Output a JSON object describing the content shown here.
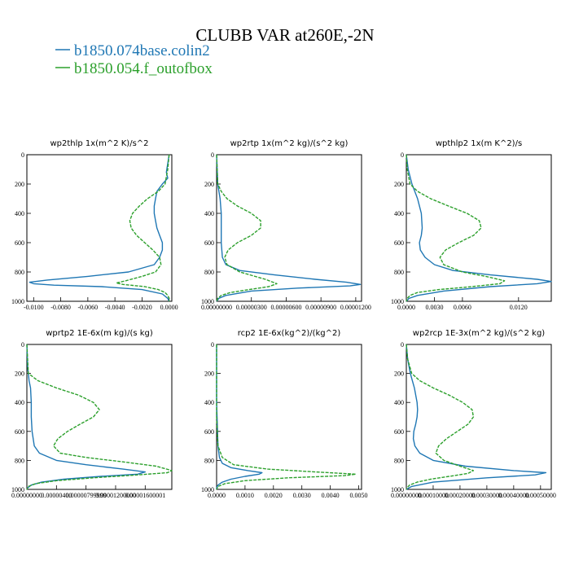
{
  "title": "CLUBB VAR at260E,-2N",
  "legend": [
    {
      "name": "b1850.074base.colin2",
      "color": "#1f77b4"
    },
    {
      "name": "b1850.054.f_outofbox",
      "color": "#2ca02c"
    }
  ],
  "chart_data": [
    {
      "type": "line",
      "title": "wp2thlp   1x(m^2 K)/s^2",
      "xlim": [
        -0.0105,
        0.0002
      ],
      "ylim": [
        1000,
        0
      ],
      "xticks": [
        -0.01,
        -0.008,
        -0.006,
        -0.004,
        -0.002,
        0.0
      ],
      "xticklabels": [
        "-0.0100",
        "-0.0080",
        "-0.0060",
        "-0.0040",
        "-0.0020",
        "0.0000"
      ],
      "yticks": [
        0,
        200,
        400,
        600,
        800,
        1000
      ],
      "series": [
        {
          "color": "#1f77b4",
          "dashed": false,
          "y": [
            0,
            60,
            120,
            160,
            200,
            250,
            300,
            350,
            400,
            450,
            500,
            550,
            600,
            650,
            700,
            750,
            800,
            830,
            855,
            870,
            880,
            890,
            900,
            920,
            950,
            980,
            1000
          ],
          "x": [
            0.0,
            -0.0001,
            -0.0002,
            -0.0001,
            -0.0005,
            -0.0009,
            -0.001,
            -0.0011,
            -0.0011,
            -0.001,
            -0.0009,
            -0.0007,
            -0.0005,
            -0.0005,
            -0.0007,
            -0.0011,
            -0.003,
            -0.006,
            -0.009,
            -0.0103,
            -0.01,
            -0.0085,
            -0.005,
            -0.002,
            -0.0005,
            -0.0001,
            0.0
          ]
        },
        {
          "color": "#2ca02c",
          "dashed": true,
          "y": [
            0,
            100,
            150,
            200,
            250,
            300,
            350,
            400,
            450,
            500,
            550,
            600,
            650,
            700,
            750,
            800,
            830,
            860,
            875,
            885,
            900,
            920,
            940,
            960,
            980,
            1000
          ],
          "x": [
            0.0,
            -0.0001,
            -0.0002,
            -0.0003,
            -0.0008,
            -0.0016,
            -0.0022,
            -0.0027,
            -0.0029,
            -0.0028,
            -0.0024,
            -0.0018,
            -0.0012,
            -0.0007,
            -0.0006,
            -0.001,
            -0.002,
            -0.0032,
            -0.0039,
            -0.0034,
            -0.0018,
            -0.0008,
            -0.0003,
            -0.0001,
            0.0,
            0.0
          ]
        }
      ]
    },
    {
      "type": "line",
      "title": "wp2rtp   1x(m^2 kg)/(s^2 kg)",
      "xlim": [
        0,
        1.25e-05
      ],
      "ylim": [
        1000,
        0
      ],
      "xticks": [
        0,
        3e-06,
        6e-06,
        9e-06,
        1.2e-05
      ],
      "xticklabels": [
        "0.00000000",
        "0.00000300",
        "0.00000600",
        "0.00000900",
        "0.00001200"
      ],
      "yticks": [
        0,
        200,
        400,
        600,
        800,
        1000
      ],
      "series": [
        {
          "color": "#1f77b4",
          "dashed": false,
          "y": [
            0,
            200,
            300,
            400,
            500,
            600,
            700,
            750,
            790,
            820,
            850,
            870,
            885,
            895,
            910,
            930,
            960,
            980,
            1000
          ],
          "x": [
            0,
            1e-07,
            3e-07,
            4e-07,
            4e-07,
            4e-07,
            5e-07,
            8e-07,
            2e-06,
            5e-06,
            8.5e-06,
            1.12e-05,
            1.24e-05,
            1.15e-05,
            7e-06,
            3e-06,
            8e-07,
            2e-07,
            0
          ]
        },
        {
          "color": "#2ca02c",
          "dashed": true,
          "y": [
            0,
            200,
            250,
            300,
            350,
            400,
            450,
            500,
            550,
            600,
            650,
            700,
            750,
            800,
            850,
            880,
            900,
            920,
            940,
            960,
            980,
            1000
          ],
          "x": [
            0,
            1e-07,
            4e-07,
            9e-07,
            1.8e-06,
            3e-06,
            3.8e-06,
            3.8e-06,
            3e-06,
            1.8e-06,
            1e-06,
            7e-07,
            9e-07,
            2e-06,
            4.2e-06,
            5.2e-06,
            4.5e-06,
            2.8e-06,
            1.2e-06,
            4e-07,
            1e-07,
            0
          ]
        }
      ]
    },
    {
      "type": "line",
      "title": "wpthlp2   1x(m K^2)/s",
      "xlim": [
        0,
        0.0155
      ],
      "ylim": [
        1000,
        0
      ],
      "xticks": [
        0,
        0.003,
        0.006,
        0.012
      ],
      "xticklabels": [
        "0.0000",
        "0.0030",
        "0.0060",
        "0.0120"
      ],
      "yticks": [
        0,
        200,
        400,
        600,
        800,
        1000
      ],
      "series": [
        {
          "color": "#1f77b4",
          "dashed": false,
          "y": [
            0,
            100,
            200,
            300,
            400,
            500,
            550,
            600,
            650,
            700,
            750,
            790,
            820,
            850,
            865,
            880,
            900,
            930,
            960,
            980,
            1000
          ],
          "x": [
            0,
            0.0002,
            0.0006,
            0.0012,
            0.0016,
            0.0017,
            0.0016,
            0.0014,
            0.0015,
            0.002,
            0.003,
            0.005,
            0.009,
            0.014,
            0.0155,
            0.014,
            0.009,
            0.004,
            0.0012,
            0.0003,
            0
          ]
        },
        {
          "color": "#2ca02c",
          "dashed": true,
          "y": [
            0,
            100,
            200,
            250,
            300,
            350,
            400,
            450,
            500,
            550,
            600,
            650,
            700,
            750,
            800,
            830,
            860,
            880,
            900,
            920,
            940,
            960,
            980,
            1000
          ],
          "x": [
            0,
            0.0001,
            0.0004,
            0.0012,
            0.0026,
            0.0045,
            0.0065,
            0.0078,
            0.008,
            0.0072,
            0.0056,
            0.0042,
            0.0036,
            0.004,
            0.006,
            0.0085,
            0.0105,
            0.01,
            0.007,
            0.0035,
            0.0012,
            0.0004,
            0.0001,
            0
          ]
        }
      ]
    },
    {
      "type": "line",
      "title": "wprtp2   1E-6x(m kg)/(s kg)",
      "xlim": [
        0,
        1.96e-05
      ],
      "ylim": [
        1000,
        0
      ],
      "xticks": [
        0,
        4e-06,
        8e-06,
        1.2e-05,
        1.6e-05
      ],
      "xticklabels": [
        "0.00000000",
        "0.00000400",
        "0.00000799999",
        "0.00001200000",
        "0.00001600001"
      ],
      "yticks": [
        0,
        200,
        400,
        600,
        800,
        1000
      ],
      "series": [
        {
          "color": "#1f77b4",
          "dashed": false,
          "y": [
            0,
            150,
            250,
            300,
            400,
            500,
            600,
            700,
            750,
            800,
            830,
            860,
            880,
            895,
            910,
            930,
            950,
            970,
            990,
            1000
          ],
          "x": [
            0,
            1e-07,
            3e-07,
            5e-07,
            6e-07,
            6e-07,
            7e-07,
            1e-06,
            1.7e-06,
            4e-06,
            8e-06,
            1.3e-05,
            1.6e-05,
            1.5e-05,
            1e-05,
            5e-06,
            2e-06,
            6e-07,
            1e-07,
            0
          ]
        },
        {
          "color": "#2ca02c",
          "dashed": true,
          "y": [
            0,
            200,
            250,
            300,
            350,
            400,
            450,
            500,
            550,
            600,
            650,
            700,
            750,
            780,
            810,
            840,
            870,
            885,
            900,
            920,
            940,
            960,
            980,
            1000
          ],
          "x": [
            0,
            2e-07,
            1.5e-06,
            4e-06,
            7e-06,
            9e-06,
            9.8e-06,
            9e-06,
            7.2e-06,
            5.5e-06,
            4.2e-06,
            3.6e-06,
            4.5e-06,
            8e-06,
            1.3e-05,
            1.75e-05,
            1.96e-05,
            1.9e-05,
            1.5e-05,
            9e-06,
            4e-06,
            1.2e-06,
            2e-07,
            0
          ]
        }
      ]
    },
    {
      "type": "line",
      "title": "rcp2   1E-6x(kg^2)/(kg^2)",
      "xlim": [
        0,
        0.0051
      ],
      "ylim": [
        1000,
        0
      ],
      "xticks": [
        0,
        0.001,
        0.002,
        0.003,
        0.004,
        0.005
      ],
      "xticklabels": [
        "0.0000",
        "0.0010",
        "0.0020",
        "0.0030",
        "0.0040",
        "0.0050"
      ],
      "yticks": [
        0,
        200,
        400,
        600,
        800,
        1000
      ],
      "series": [
        {
          "color": "#1f77b4",
          "dashed": false,
          "y": [
            0,
            400,
            700,
            780,
            820,
            850,
            870,
            885,
            895,
            910,
            930,
            950,
            970,
            990,
            1000
          ],
          "x": [
            0,
            0,
            5e-05,
            0.0001,
            0.0002,
            0.0005,
            0.0011,
            0.0016,
            0.0015,
            0.001,
            0.0005,
            0.0002,
            5e-05,
            0,
            0
          ]
        },
        {
          "color": "#2ca02c",
          "dashed": true,
          "y": [
            0,
            500,
            700,
            780,
            830,
            860,
            880,
            895,
            905,
            920,
            940,
            960,
            980,
            1000
          ],
          "x": [
            0,
            0,
            5e-05,
            0.0002,
            0.0006,
            0.0018,
            0.0035,
            0.0049,
            0.0045,
            0.0025,
            0.001,
            0.0003,
            5e-05,
            0
          ]
        }
      ]
    },
    {
      "type": "line",
      "title": "wp2rcp   1E-3x(m^2 kg)/(s^2 kg)",
      "xlim": [
        0,
        0.00054
      ],
      "ylim": [
        1000,
        0
      ],
      "xticks": [
        0,
        0.0001,
        0.0002,
        0.0003,
        0.0004,
        0.0005
      ],
      "xticklabels": [
        "0.00000000",
        "0.00010000",
        "0.00020000",
        "0.00030000",
        "0.00040000",
        "0.00050000"
      ],
      "yticks": [
        0,
        200,
        400,
        600,
        800,
        1000
      ],
      "series": [
        {
          "color": "#1f77b4",
          "dashed": false,
          "y": [
            0,
            100,
            200,
            300,
            400,
            450,
            500,
            550,
            600,
            650,
            700,
            750,
            800,
            840,
            870,
            885,
            900,
            920,
            950,
            980,
            1000
          ],
          "x": [
            0,
            5e-06,
            1.5e-05,
            3e-05,
            4e-05,
            4.2e-05,
            4e-05,
            3.5e-05,
            2.8e-05,
            2.6e-05,
            3.2e-05,
            5e-05,
            0.0001,
            0.00022,
            0.0004,
            0.00052,
            0.00048,
            0.0003,
            0.0001,
            2e-05,
            0
          ]
        },
        {
          "color": "#2ca02c",
          "dashed": true,
          "y": [
            0,
            100,
            200,
            250,
            300,
            350,
            400,
            450,
            500,
            550,
            600,
            650,
            700,
            750,
            800,
            840,
            870,
            890,
            910,
            930,
            950,
            970,
            990,
            1000
          ],
          "x": [
            0,
            5e-06,
            2e-05,
            5e-05,
            0.0001,
            0.00016,
            0.00021,
            0.000245,
            0.00025,
            0.00023,
            0.00019,
            0.00015,
            0.00012,
            0.00011,
            0.00014,
            0.0002,
            0.00025,
            0.00023,
            0.00016,
            9e-05,
            4e-05,
            1.2e-05,
            2e-06,
            0
          ]
        }
      ]
    }
  ]
}
